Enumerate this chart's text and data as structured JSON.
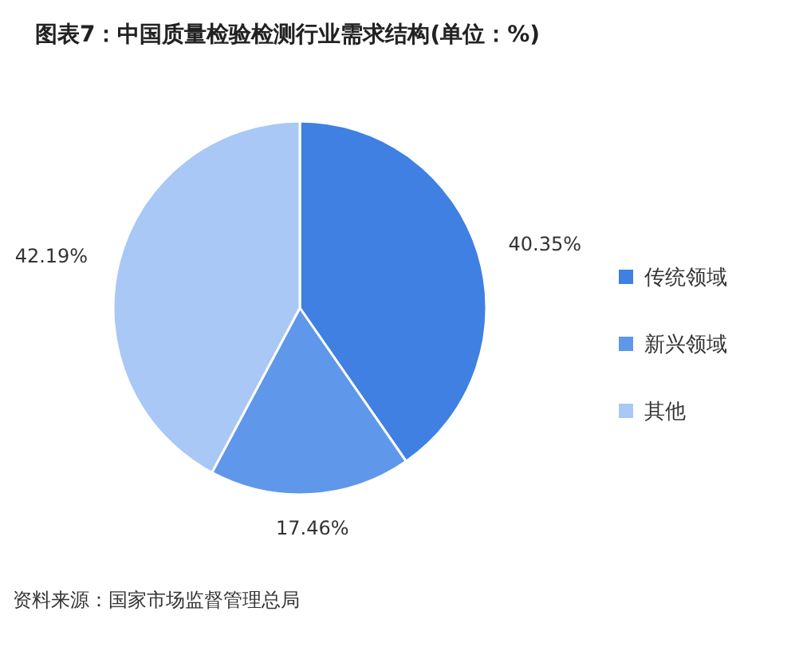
{
  "chart_data": {
    "type": "pie",
    "title": "图表7：中国质量检验检测行业需求结构(单位：%)",
    "categories": [
      "传统领域",
      "新兴领域",
      "其他"
    ],
    "values": [
      40.35,
      17.46,
      42.19
    ],
    "colors": [
      "#3f80e2",
      "#5f97ea",
      "#a9c8f5"
    ],
    "value_labels": [
      "40.35%",
      "17.46%",
      "42.19%"
    ],
    "legend": "right",
    "annotations": [
      "资料来源：国家市场监督管理总局"
    ]
  }
}
